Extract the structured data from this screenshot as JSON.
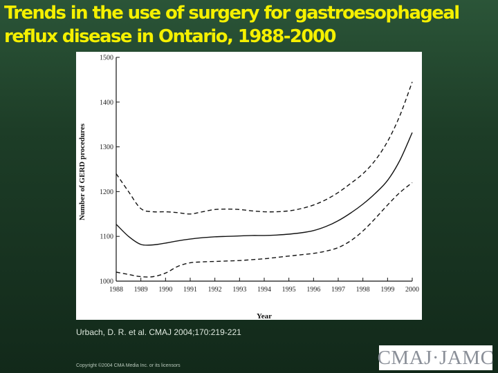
{
  "slide": {
    "title": "Trends in the use of surgery for gastroesophageal reflux disease in Ontario, 1988-2000",
    "citation": "Urbach, D. R. et al. CMAJ 2004;170:219-221",
    "copyright": "Copyright ©2004 CMA Media Inc. or its licensors",
    "logo_text": "CMAJ·JAMC",
    "title_color": "#f5f000"
  },
  "chart_data": {
    "type": "line",
    "title": "",
    "xlabel": "Year",
    "ylabel": "Number of GERD procedures",
    "xlim": [
      1988,
      2000
    ],
    "ylim": [
      1000,
      1500
    ],
    "xticks": [
      "1988",
      "1989",
      "1990",
      "1991",
      "1992",
      "1993",
      "1994",
      "1995",
      "1996",
      "1997",
      "1998",
      "1999",
      "2000"
    ],
    "yticks": [
      "1000",
      "1100",
      "1200",
      "1300",
      "1400",
      "1500"
    ],
    "grid": false,
    "legend": "none",
    "series": [
      {
        "style": "dashed",
        "x": [
          1988,
          1988.5,
          1989,
          1989.5,
          1990,
          1990.5,
          1991,
          1991.5,
          1992,
          1992.5,
          1993,
          1993.5,
          1994,
          1994.5,
          1995,
          1995.5,
          1996,
          1996.5,
          1997,
          1997.5,
          1998,
          1998.5,
          1999,
          1999.5,
          2000
        ],
        "values": [
          1240,
          1200,
          1162,
          1155,
          1155,
          1153,
          1150,
          1155,
          1160,
          1161,
          1160,
          1157,
          1155,
          1155,
          1157,
          1162,
          1170,
          1182,
          1198,
          1218,
          1240,
          1270,
          1312,
          1370,
          1445
        ]
      },
      {
        "style": "solid",
        "x": [
          1988,
          1988.5,
          1989,
          1989.5,
          1990,
          1990.5,
          1991,
          1991.5,
          1992,
          1992.5,
          1993,
          1993.5,
          1994,
          1994.5,
          1995,
          1995.5,
          1996,
          1996.5,
          1997,
          1997.5,
          1998,
          1998.5,
          1999,
          1999.5,
          2000
        ],
        "values": [
          1127,
          1100,
          1082,
          1081,
          1085,
          1090,
          1094,
          1097,
          1099,
          1100,
          1101,
          1102,
          1102,
          1103,
          1105,
          1108,
          1113,
          1122,
          1135,
          1152,
          1172,
          1196,
          1225,
          1270,
          1332
        ]
      },
      {
        "style": "dashed",
        "x": [
          1988,
          1988.5,
          1989,
          1989.5,
          1990,
          1990.5,
          1991,
          1991.5,
          1992,
          1992.5,
          1993,
          1993.5,
          1994,
          1994.5,
          1995,
          1995.5,
          1996,
          1996.5,
          1997,
          1997.5,
          1998,
          1998.5,
          1999,
          1999.5,
          2000
        ],
        "values": [
          1020,
          1015,
          1010,
          1010,
          1018,
          1033,
          1041,
          1043,
          1044,
          1045,
          1046,
          1048,
          1050,
          1053,
          1056,
          1059,
          1062,
          1067,
          1075,
          1090,
          1112,
          1140,
          1170,
          1198,
          1220
        ]
      }
    ]
  }
}
